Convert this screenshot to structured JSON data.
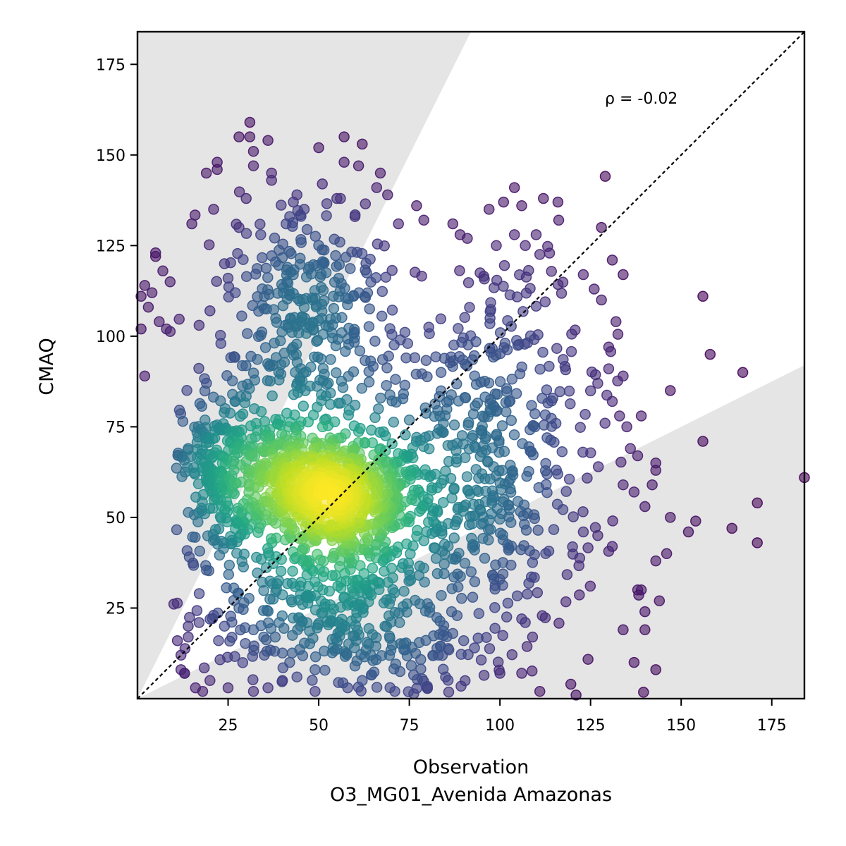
{
  "chart_data": {
    "type": "scatter",
    "xlabel": "Observation",
    "xlabel_sub": "O3_MG01_Avenida Amazonas",
    "ylabel": "CMAQ",
    "xlim": [
      0,
      184
    ],
    "ylim": [
      0,
      184
    ],
    "xticks": [
      25,
      50,
      75,
      100,
      125,
      150,
      175
    ],
    "yticks": [
      25,
      50,
      75,
      100,
      125,
      150,
      175
    ],
    "annotation": "ρ = -0.02",
    "reference_line": "1:1",
    "factor_of_two_band": true,
    "grid": false,
    "colormap": "viridis",
    "colors": {
      "band": "#e5e5e5",
      "line": "#000000",
      "low": "#440154",
      "high": "#fde725"
    },
    "density_peak": [
      58,
      55
    ],
    "points_outer": [
      [
        31,
        159
      ],
      [
        28,
        155
      ],
      [
        31,
        155
      ],
      [
        57,
        155
      ],
      [
        36,
        154
      ],
      [
        62,
        153
      ],
      [
        50,
        152
      ],
      [
        32,
        151
      ],
      [
        57,
        148
      ],
      [
        61,
        147
      ],
      [
        22,
        148
      ],
      [
        22,
        146
      ],
      [
        19,
        145
      ],
      [
        32,
        147
      ],
      [
        37,
        145
      ],
      [
        67,
        145
      ],
      [
        37,
        143
      ],
      [
        51,
        142
      ],
      [
        66,
        141
      ],
      [
        104,
        141
      ],
      [
        69,
        139
      ],
      [
        44,
        139
      ],
      [
        43,
        137
      ],
      [
        46,
        135
      ],
      [
        55,
        138
      ],
      [
        56,
        138
      ],
      [
        77,
        136
      ],
      [
        72,
        131
      ],
      [
        97,
        135
      ],
      [
        101,
        137
      ],
      [
        106,
        136
      ],
      [
        112,
        138
      ],
      [
        116,
        137
      ],
      [
        21,
        135
      ],
      [
        30,
        138
      ],
      [
        15,
        131
      ],
      [
        28,
        130
      ],
      [
        34,
        128
      ],
      [
        41,
        131
      ],
      [
        42,
        133
      ],
      [
        60,
        133
      ],
      [
        79,
        132
      ],
      [
        87,
        131
      ],
      [
        89,
        128
      ],
      [
        91,
        127
      ],
      [
        99,
        125
      ],
      [
        104,
        128
      ],
      [
        107,
        125
      ],
      [
        110,
        128
      ],
      [
        128,
        130
      ],
      [
        5,
        122
      ],
      [
        5,
        123
      ],
      [
        7,
        118
      ],
      [
        9,
        115
      ],
      [
        2,
        114
      ],
      [
        4,
        112
      ],
      [
        1,
        111
      ],
      [
        3,
        108
      ],
      [
        6,
        104
      ],
      [
        8,
        102
      ],
      [
        1,
        102
      ],
      [
        2,
        89
      ],
      [
        24,
        120
      ],
      [
        25,
        116
      ],
      [
        27,
        112
      ],
      [
        20,
        107
      ],
      [
        17,
        103
      ],
      [
        23,
        98
      ],
      [
        131,
        121
      ],
      [
        134,
        117
      ],
      [
        123,
        117
      ],
      [
        126,
        113
      ],
      [
        128,
        110
      ],
      [
        132,
        104
      ],
      [
        130,
        97
      ],
      [
        130,
        91
      ],
      [
        127,
        87
      ],
      [
        134,
        89
      ],
      [
        131,
        82
      ],
      [
        133,
        78
      ],
      [
        129,
        76
      ],
      [
        135,
        75
      ],
      [
        136,
        69
      ],
      [
        139,
        78
      ],
      [
        147,
        85
      ],
      [
        156,
        111
      ],
      [
        158,
        95
      ],
      [
        167,
        90
      ],
      [
        156,
        71
      ],
      [
        138,
        67
      ],
      [
        143,
        65
      ],
      [
        143,
        63
      ],
      [
        184,
        61
      ],
      [
        134,
        59
      ],
      [
        137,
        57
      ],
      [
        142,
        59
      ],
      [
        140,
        53
      ],
      [
        147,
        50
      ],
      [
        154,
        49
      ],
      [
        152,
        46
      ],
      [
        164,
        47
      ],
      [
        171,
        54
      ],
      [
        171,
        43
      ],
      [
        146,
        40
      ],
      [
        143,
        38
      ],
      [
        131,
        42
      ],
      [
        127,
        45
      ],
      [
        123,
        46
      ],
      [
        139,
        30
      ],
      [
        138,
        30
      ],
      [
        140,
        24
      ],
      [
        144,
        27
      ],
      [
        134,
        19
      ],
      [
        140,
        19
      ],
      [
        137,
        10
      ],
      [
        143,
        8
      ],
      [
        121,
        1
      ],
      [
        111,
        2
      ],
      [
        106,
        7
      ],
      [
        100,
        7
      ],
      [
        106,
        22
      ],
      [
        107,
        21
      ],
      [
        109,
        17
      ],
      [
        93,
        14
      ],
      [
        90,
        16
      ],
      [
        87,
        18
      ],
      [
        83,
        12
      ],
      [
        85,
        6
      ],
      [
        80,
        3
      ],
      [
        71,
        2
      ],
      [
        62,
        5
      ],
      [
        58,
        3
      ],
      [
        49,
        2
      ],
      [
        44,
        6
      ],
      [
        40,
        5
      ],
      [
        36,
        3
      ],
      [
        32,
        2
      ],
      [
        18,
        2
      ],
      [
        16,
        3
      ],
      [
        13,
        7
      ],
      [
        12,
        8
      ],
      [
        11,
        16
      ],
      [
        14,
        17
      ],
      [
        14,
        20
      ],
      [
        17,
        21
      ],
      [
        21,
        23
      ],
      [
        24,
        20
      ],
      [
        25,
        3
      ],
      [
        13,
        7
      ],
      [
        12,
        12
      ],
      [
        20,
        5
      ],
      [
        28,
        25
      ],
      [
        32,
        19
      ],
      [
        35,
        12
      ],
      [
        38,
        17
      ],
      [
        42,
        10
      ],
      [
        45,
        20
      ],
      [
        49,
        8
      ],
      [
        54,
        14
      ],
      [
        60,
        9
      ]
    ],
    "clusters": [
      {
        "cx": 58,
        "cy": 55,
        "sx": 11,
        "sy": 8,
        "n": 520
      },
      {
        "cx": 40,
        "cy": 62,
        "sx": 9,
        "sy": 8,
        "n": 260
      },
      {
        "cx": 22,
        "cy": 62,
        "sx": 5,
        "sy": 12,
        "n": 200
      },
      {
        "cx": 48,
        "cy": 95,
        "sx": 13,
        "sy": 16,
        "n": 260
      },
      {
        "cx": 60,
        "cy": 30,
        "sx": 13,
        "sy": 12,
        "n": 240
      },
      {
        "cx": 90,
        "cy": 70,
        "sx": 13,
        "sy": 22,
        "n": 260
      },
      {
        "cx": 100,
        "cy": 45,
        "sx": 14,
        "sy": 20,
        "n": 160
      },
      {
        "cx": 45,
        "cy": 118,
        "sx": 12,
        "sy": 10,
        "n": 90
      },
      {
        "cx": 110,
        "cy": 95,
        "sx": 12,
        "sy": 18,
        "n": 80
      },
      {
        "cx": 35,
        "cy": 25,
        "sx": 12,
        "sy": 12,
        "n": 110
      },
      {
        "cx": 70,
        "cy": 10,
        "sx": 15,
        "sy": 6,
        "n": 60
      }
    ]
  }
}
